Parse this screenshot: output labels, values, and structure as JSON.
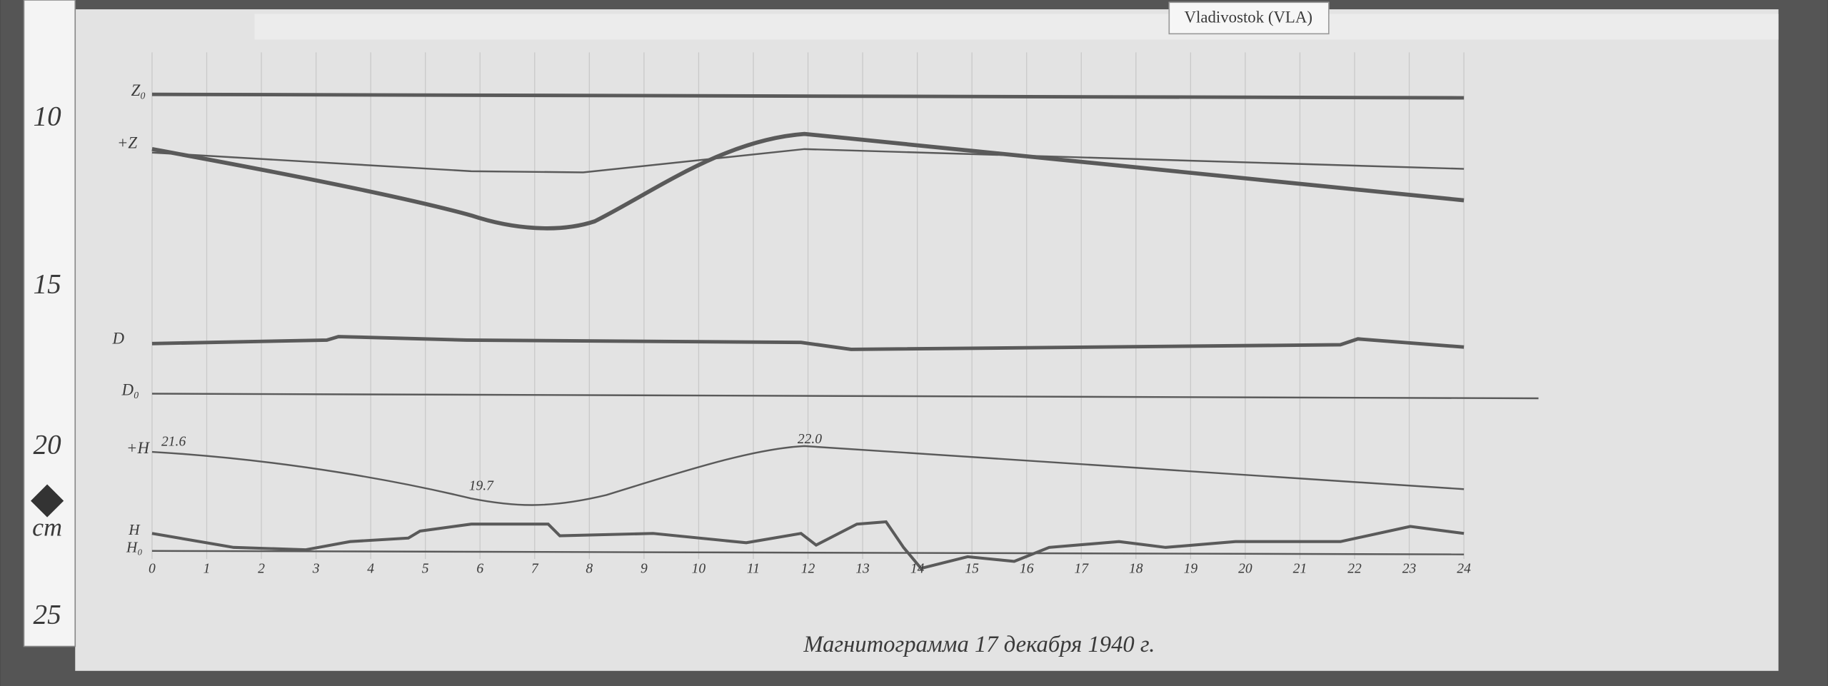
{
  "station_label": "Vladivostok (VLA)",
  "ruler": {
    "marks": [
      "10",
      "15",
      "20",
      "25"
    ],
    "unit": "cm"
  },
  "traces": {
    "z0": "Z₀",
    "z": "+Z",
    "d": "D",
    "d0": "D₀",
    "h": "+H",
    "h_var": "H",
    "h0": "H₀"
  },
  "annotations": [
    "21.6",
    "19.7",
    "22.0"
  ],
  "hours": [
    "0",
    "1",
    "2",
    "3",
    "4",
    "5",
    "6",
    "7",
    "8",
    "9",
    "10",
    "11",
    "12",
    "13",
    "14",
    "15",
    "16",
    "17",
    "18",
    "19",
    "20",
    "21",
    "22",
    "23",
    "24"
  ],
  "caption": "Магнитограмма 17 декабря 1940 г."
}
